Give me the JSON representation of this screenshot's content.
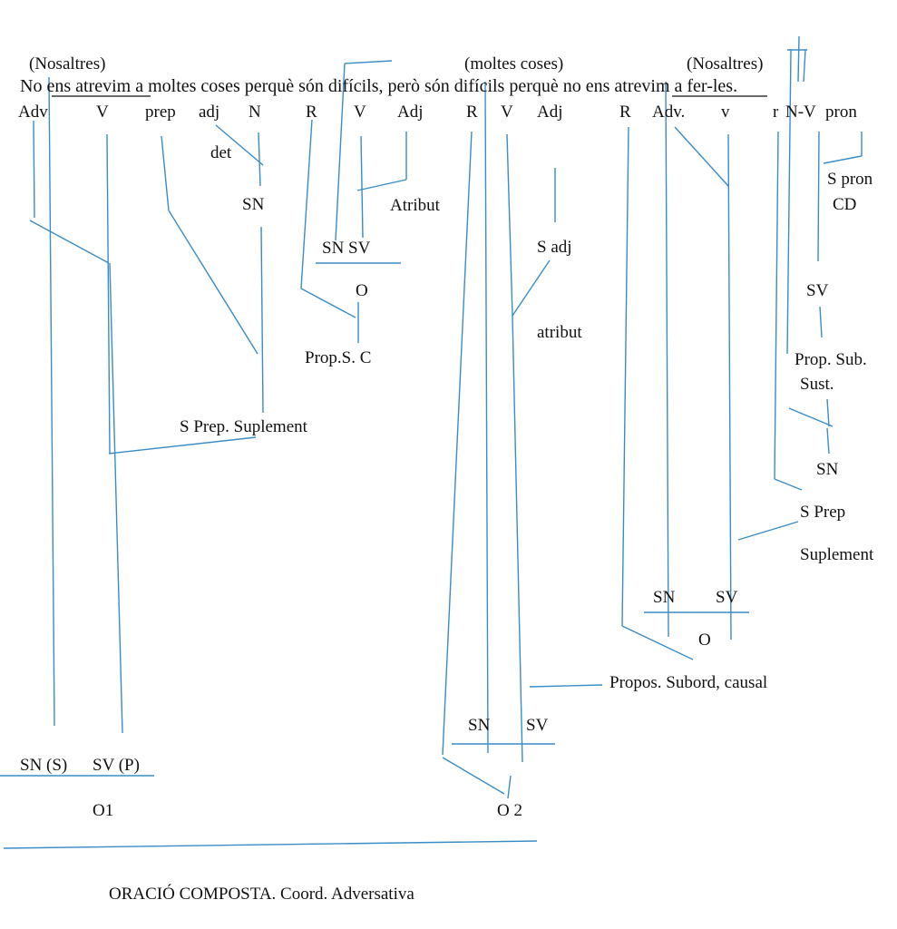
{
  "colors": {
    "line": "#3a8cc6",
    "text": "#111111",
    "background": "#ffffff"
  },
  "annotations": {
    "subject1": "(Nosaltres)",
    "object": "(moltes coses)",
    "subject2": "(Nosaltres)"
  },
  "sentence": {
    "w1": "No",
    "w2": "ens atrevim",
    "w3": "a moltes coses perquè són difícils, però són difícils perquè no",
    "w4": "ens atrevim",
    "w5": "a fer-les."
  },
  "pos_tags": {
    "adv": "Adv",
    "v": "V",
    "prep": "prep",
    "adj": "adj",
    "n": "N",
    "r1": "R",
    "v2": "V",
    "adj2": "Adj",
    "r2": "R",
    "v3": "V",
    "adj3": "Adj",
    "r3": "R",
    "adv2": "Adv.",
    "v4": "v",
    "r4": "r",
    "nv": "N-V",
    "pron": "pron"
  },
  "labels": {
    "det": "det",
    "sn1": "SN",
    "atribut1": "Atribut",
    "snsv1": "SN SV",
    "o1": "O",
    "prop_sc": "Prop.S. C",
    "s_prep_supl": "S Prep. Suplement",
    "s_adj": "S adj",
    "atribut2": "atribut",
    "s_pron": "S pron",
    "cd": "CD",
    "sv1": "SV",
    "prop_sub": "Prop. Sub.",
    "sust": "Sust.",
    "sn2": "SN",
    "s_prep": "S Prep",
    "suplement": "Suplement",
    "sn3": "SN",
    "sv2": "SV",
    "o2": "O",
    "propos_causal": "Propos. Subord, causal",
    "sn4": "SN",
    "sv3": "SV",
    "sn_s": "SN (S)",
    "sv_p": "SV (P)",
    "o1_final": "O1",
    "o2_final": "O 2",
    "footer": "ORACIÓ COMPOSTA. Coord. Adversativa"
  }
}
